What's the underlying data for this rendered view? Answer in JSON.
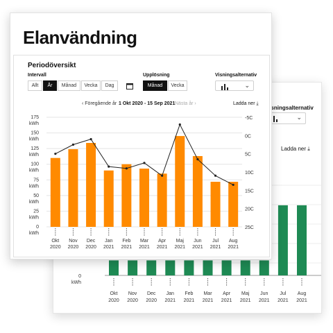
{
  "title": "Elanvändning",
  "panel": {
    "title": "Periodöversikt",
    "interval_label": "Intervall",
    "interval_buttons": [
      "Allt",
      "År",
      "Månad",
      "Vecka",
      "Dag"
    ],
    "interval_active": "År",
    "resolution_label": "Upplösning",
    "resolution_buttons": [
      "Månad",
      "Vecka"
    ],
    "resolution_active": "Månad",
    "display_label": "Visningsalternativ",
    "display_icon": "bar-chart-icon",
    "prev_label": "‹ Föregående år",
    "date_range": "1 Okt 2020 - 15 Sep 2021",
    "next_label": "Nästa år ›",
    "download_label": "Ladda ner ⤓"
  },
  "back_panel": {
    "display_label": "Visningsalternativ",
    "download_label": "Ladda ner ⤓",
    "zero_label": "0",
    "unit": "kWh"
  },
  "chart_data": [
    {
      "type": "bar",
      "categories": [
        [
          "Okt",
          "2020"
        ],
        [
          "Nov",
          "2020"
        ],
        [
          "Dec",
          "2020"
        ],
        [
          "Jan",
          "2021"
        ],
        [
          "Feb",
          "2021"
        ],
        [
          "Mar",
          "2021"
        ],
        [
          "Apr",
          "2021"
        ],
        [
          "Maj",
          "2021"
        ],
        [
          "Jun",
          "2021"
        ],
        [
          "Jul",
          "2021"
        ],
        [
          "Aug",
          "2021"
        ]
      ],
      "series": [
        {
          "values": [
            110,
            124,
            134,
            90,
            100,
            93,
            85,
            145,
            113,
            72,
            72
          ],
          "color": "#ff8a00",
          "kind": "bar"
        },
        {
          "values": [
            5,
            2.5,
            1,
            8.5,
            9,
            7.5,
            11,
            -3,
            6.5,
            11,
            13.5
          ],
          "color": "#222222",
          "kind": "line",
          "axis": "right"
        }
      ],
      "y_ticks_left": [
        "175",
        "150",
        "125",
        "100",
        "75",
        "50",
        "25",
        "0"
      ],
      "y_unit": "kWh",
      "ylim": [
        0,
        175
      ],
      "y_ticks_right": [
        "-5C",
        "0C",
        "5C",
        "10C",
        "15C",
        "20C",
        "25C"
      ],
      "y2lim": [
        -5,
        25
      ],
      "grid": true
    },
    {
      "type": "bar",
      "categories": [
        [
          "Okt",
          "2020"
        ],
        [
          "Nov",
          "2020"
        ],
        [
          "Dec",
          "2020"
        ],
        [
          "Jan",
          "2021"
        ],
        [
          "Feb",
          "2021"
        ],
        [
          "Mar",
          "2021"
        ],
        [
          "Apr",
          "2021"
        ],
        [
          "Maj",
          "2021"
        ],
        [
          "Jun",
          "2021"
        ],
        [
          "Jul",
          "2021"
        ],
        [
          "Aug",
          "2021"
        ]
      ],
      "series": [
        {
          "values": [
            15,
            15,
            15,
            15,
            15,
            15,
            15,
            15,
            15,
            70,
            70
          ],
          "color": "#1e8a54"
        }
      ]
    }
  ]
}
